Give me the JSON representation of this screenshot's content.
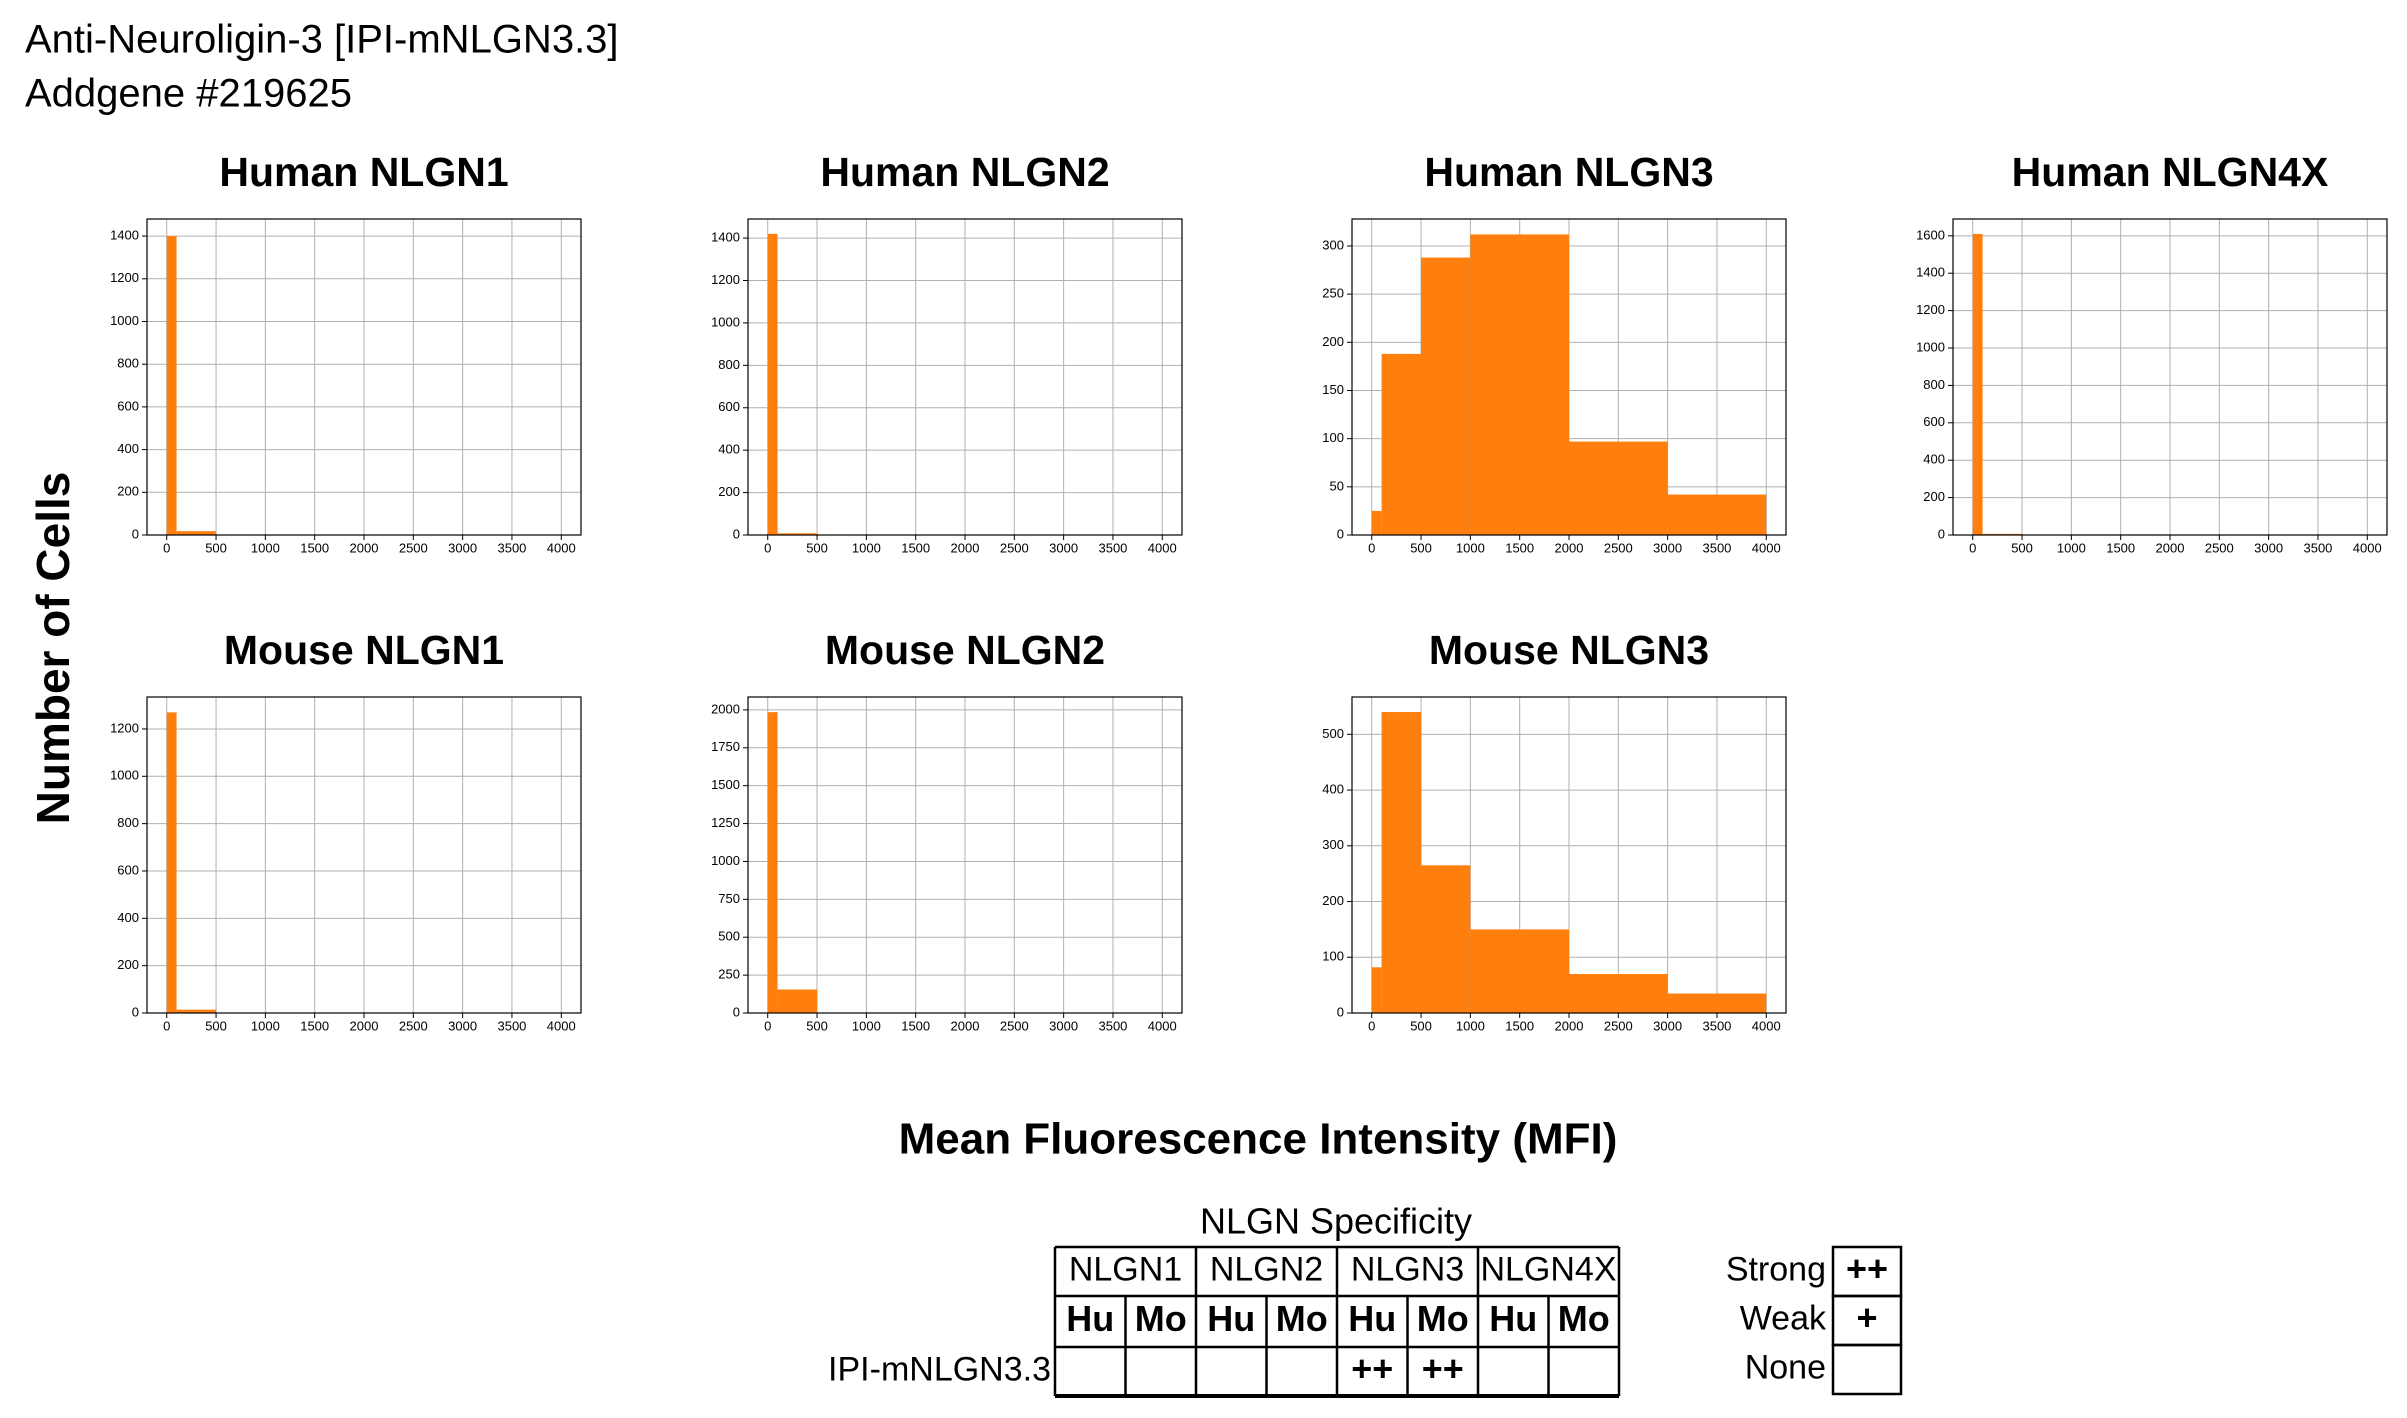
{
  "figure": {
    "title_lines": [
      "Anti-Neuroligin-3 [IPI-mNLGN3.3]",
      "Addgene #219625"
    ],
    "xlabel": "Mean Fluorescence Intensity (MFI)",
    "ylabel": "Number of Cells"
  },
  "chart_data": [
    {
      "type": "histogram",
      "title": "Human NLGN1",
      "bins": [
        0,
        100,
        500,
        1000,
        2000,
        3000,
        4000
      ],
      "values": [
        1400,
        18,
        1,
        0,
        0,
        0
      ],
      "color": "#ff7f0e",
      "xlim": [
        -200,
        4200
      ],
      "xticks": [
        0,
        500,
        1000,
        1500,
        2000,
        2500,
        3000,
        3500,
        4000
      ],
      "ylim": [
        0,
        1480
      ],
      "yticks": [
        0,
        200,
        400,
        600,
        800,
        1000,
        1200,
        1400
      ],
      "grid": true
    },
    {
      "type": "histogram",
      "title": "Human NLGN2",
      "bins": [
        0,
        100,
        500,
        1000,
        2000,
        3000,
        4000
      ],
      "values": [
        1420,
        8,
        1,
        0,
        0,
        0
      ],
      "color": "#ff7f0e",
      "xlim": [
        -200,
        4200
      ],
      "xticks": [
        0,
        500,
        1000,
        1500,
        2000,
        2500,
        3000,
        3500,
        4000
      ],
      "ylim": [
        0,
        1490
      ],
      "yticks": [
        0,
        200,
        400,
        600,
        800,
        1000,
        1200,
        1400
      ],
      "grid": true
    },
    {
      "type": "histogram",
      "title": "Human NLGN3",
      "bins": [
        0,
        100,
        500,
        1000,
        2000,
        3000,
        4000
      ],
      "values": [
        25,
        188,
        288,
        312,
        97,
        42
      ],
      "color": "#ff7f0e",
      "xlim": [
        -200,
        4200
      ],
      "xticks": [
        0,
        500,
        1000,
        1500,
        2000,
        2500,
        3000,
        3500,
        4000
      ],
      "ylim": [
        0,
        328
      ],
      "yticks": [
        0,
        50,
        100,
        150,
        200,
        250,
        300
      ],
      "grid": true
    },
    {
      "type": "histogram",
      "title": "Human NLGN4X",
      "bins": [
        0,
        100,
        500,
        1000,
        2000,
        3000,
        4000
      ],
      "values": [
        1610,
        6,
        1,
        3,
        0,
        0
      ],
      "color": "#ff7f0e",
      "xlim": [
        -200,
        4200
      ],
      "xticks": [
        0,
        500,
        1000,
        1500,
        2000,
        2500,
        3000,
        3500,
        4000
      ],
      "ylim": [
        0,
        1690
      ],
      "yticks": [
        0,
        200,
        400,
        600,
        800,
        1000,
        1200,
        1400,
        1600
      ],
      "grid": true
    },
    {
      "type": "histogram",
      "title": "Mouse NLGN1",
      "bins": [
        0,
        100,
        500,
        1000,
        2000,
        3000,
        4000
      ],
      "values": [
        1270,
        14,
        1,
        0,
        0,
        0
      ],
      "color": "#ff7f0e",
      "xlim": [
        -200,
        4200
      ],
      "xticks": [
        0,
        500,
        1000,
        1500,
        2000,
        2500,
        3000,
        3500,
        4000
      ],
      "ylim": [
        0,
        1335
      ],
      "yticks": [
        0,
        200,
        400,
        600,
        800,
        1000,
        1200
      ],
      "grid": true
    },
    {
      "type": "histogram",
      "title": "Mouse NLGN2",
      "bins": [
        0,
        100,
        500,
        1000,
        2000,
        3000,
        4000
      ],
      "values": [
        1985,
        155,
        1,
        0,
        0,
        0
      ],
      "color": "#ff7f0e",
      "xlim": [
        -200,
        4200
      ],
      "xticks": [
        0,
        500,
        1000,
        1500,
        2000,
        2500,
        3000,
        3500,
        4000
      ],
      "ylim": [
        0,
        2085
      ],
      "yticks": [
        0,
        250,
        500,
        750,
        1000,
        1250,
        1500,
        1750,
        2000
      ],
      "grid": true
    },
    {
      "type": "histogram",
      "title": "Mouse NLGN3",
      "bins": [
        0,
        100,
        500,
        1000,
        2000,
        3000,
        4000
      ],
      "values": [
        82,
        540,
        265,
        150,
        70,
        35
      ],
      "color": "#ff7f0e",
      "xlim": [
        -200,
        4200
      ],
      "xticks": [
        0,
        500,
        1000,
        1500,
        2000,
        2500,
        3000,
        3500,
        4000
      ],
      "ylim": [
        0,
        567
      ],
      "yticks": [
        0,
        100,
        200,
        300,
        400,
        500
      ],
      "grid": true
    }
  ],
  "table": {
    "title": "NLGN Specificity",
    "groups": [
      "NLGN1",
      "NLGN2",
      "NLGN3",
      "NLGN4X"
    ],
    "subheaders": [
      "Hu",
      "Mo",
      "Hu",
      "Mo",
      "Hu",
      "Mo",
      "Hu",
      "Mo"
    ],
    "rows": [
      {
        "label": "IPI-mNLGN3.3",
        "cells": [
          null,
          null,
          null,
          null,
          "++",
          "++",
          null,
          null
        ]
      }
    ]
  },
  "key": [
    {
      "label": "Strong",
      "symbol": "++"
    },
    {
      "label": "Weak",
      "symbol": "+"
    },
    {
      "label": "None"
    }
  ]
}
